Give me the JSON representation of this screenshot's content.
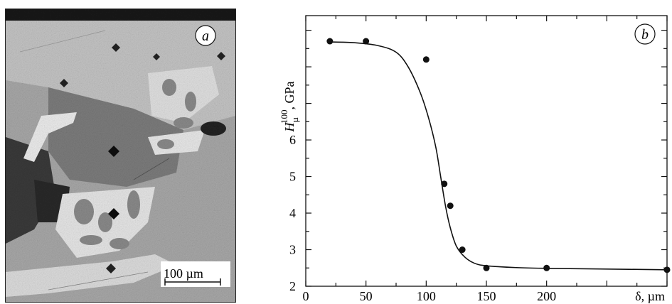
{
  "panel_a": {
    "letter": "a",
    "scalebar_label": "100 µm"
  },
  "chart_data": {
    "type": "scatter",
    "panel_letter": "b",
    "ylabel": "H",
    "ylabel_superscript": "100",
    "ylabel_subscript": "µ",
    "ylabel_unit": ", GPa",
    "xlabel": "δ, µm",
    "xlim": [
      0,
      300
    ],
    "ylim": [
      2,
      9.4
    ],
    "x_tick_values": [
      0,
      50,
      100,
      150,
      200
    ],
    "x_tick_labels": [
      "0",
      "50",
      "100",
      "150",
      "200"
    ],
    "y_tick_values": [
      2,
      3,
      4,
      5,
      6
    ],
    "y_tick_labels": [
      "2",
      "3",
      "4",
      "5",
      "6"
    ],
    "y_unlabeled_ticks": [
      7,
      8,
      9
    ],
    "grid": false,
    "series": [
      {
        "points": [
          [
            20,
            8.7
          ],
          [
            50,
            8.7
          ],
          [
            100,
            8.2
          ],
          [
            115,
            4.8
          ],
          [
            120,
            4.2
          ],
          [
            130,
            3.0
          ],
          [
            150,
            2.5
          ],
          [
            200,
            2.5
          ],
          [
            300,
            2.45
          ]
        ]
      }
    ],
    "fit_curve": [
      [
        20,
        8.68
      ],
      [
        40,
        8.66
      ],
      [
        60,
        8.58
      ],
      [
        75,
        8.4
      ],
      [
        85,
        8.0
      ],
      [
        95,
        7.3
      ],
      [
        102,
        6.6
      ],
      [
        108,
        5.8
      ],
      [
        112,
        5.0
      ],
      [
        116,
        4.2
      ],
      [
        120,
        3.6
      ],
      [
        125,
        3.1
      ],
      [
        132,
        2.8
      ],
      [
        140,
        2.63
      ],
      [
        150,
        2.56
      ],
      [
        175,
        2.51
      ],
      [
        200,
        2.49
      ],
      [
        250,
        2.47
      ],
      [
        300,
        2.45
      ]
    ]
  }
}
